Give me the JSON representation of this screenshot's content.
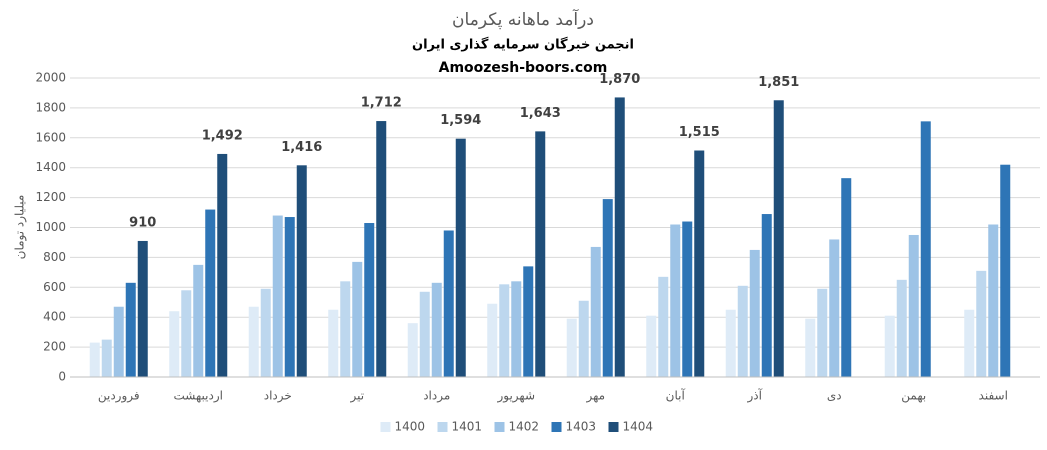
{
  "chart_data": {
    "type": "bar",
    "title": "درآمد ماهانه پکرمان",
    "subtitle": "انجمن خبرگان سرمایه گذاری ایران",
    "source": "Amoozesh-boors.com",
    "y_label": "میلیارد تومان",
    "categories": [
      "فروردین",
      "اردیبهشت",
      "خرداد",
      "تیر",
      "مرداد",
      "شهریور",
      "مهر",
      "آبان",
      "آذر",
      "دی",
      "بهمن",
      "اسفند"
    ],
    "series": [
      {
        "name": "1400",
        "color": "#deebf7",
        "values": [
          230,
          440,
          470,
          450,
          360,
          490,
          390,
          410,
          450,
          390,
          410,
          450
        ]
      },
      {
        "name": "1401",
        "color": "#bdd7ee",
        "values": [
          250,
          580,
          590,
          640,
          570,
          620,
          510,
          670,
          610,
          590,
          650,
          710
        ]
      },
      {
        "name": "1402",
        "color": "#9dc3e6",
        "values": [
          470,
          750,
          1080,
          770,
          630,
          640,
          870,
          1020,
          850,
          920,
          950,
          1020
        ]
      },
      {
        "name": "1403",
        "color": "#2e75b6",
        "values": [
          630,
          1120,
          1070,
          1030,
          980,
          740,
          1190,
          1040,
          1090,
          1330,
          1710,
          1420
        ]
      },
      {
        "name": "1404",
        "color": "#1f4e79",
        "values": [
          910,
          1492,
          1416,
          1712,
          1594,
          1643,
          1870,
          1515,
          1851,
          null,
          null,
          null
        ],
        "value_labels": [
          "910",
          "1,492",
          "1,416",
          "1,712",
          "1,594",
          "1,643",
          "1,870",
          "1,515",
          "1,851",
          null,
          null,
          null
        ]
      }
    ],
    "ylim": [
      0,
      2000
    ],
    "yticks": [
      0,
      200,
      400,
      600,
      800,
      1000,
      1200,
      1400,
      1600,
      1800,
      2000
    ],
    "grid": true,
    "legend": "bottom"
  }
}
